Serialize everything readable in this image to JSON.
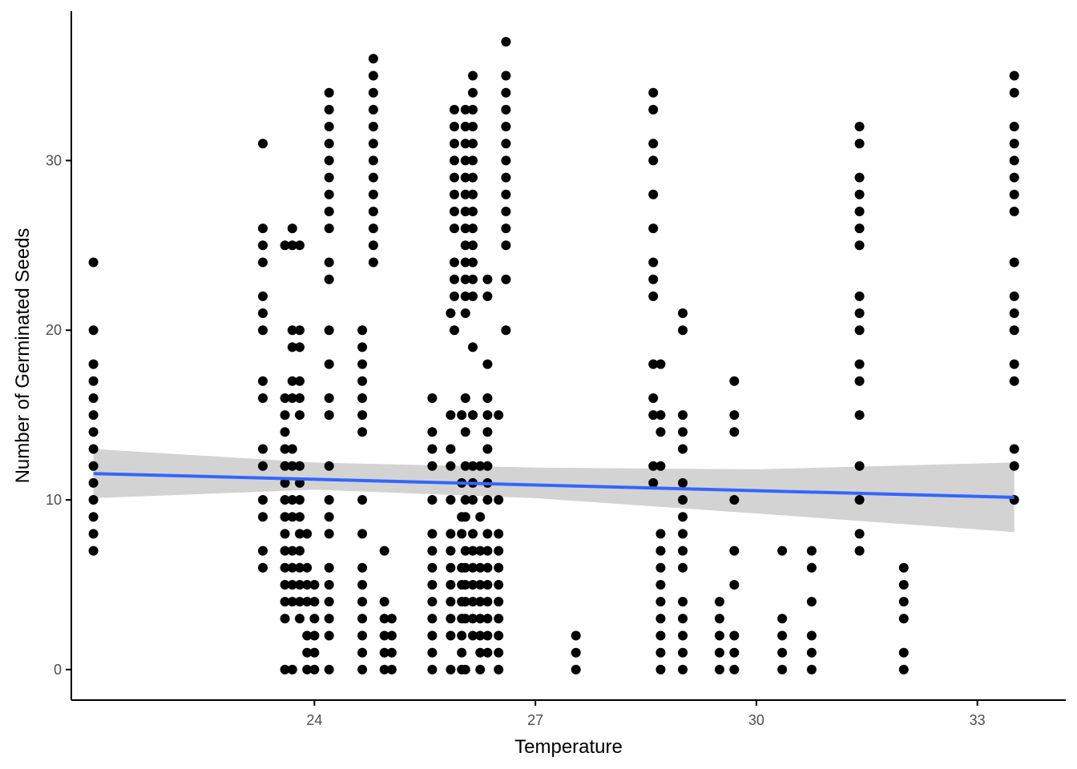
{
  "chart_data": {
    "type": "scatter",
    "xlabel": "Temperature",
    "ylabel": "Number of Germinated Seeds",
    "xlim": [
      20.7,
      34.2
    ],
    "ylim": [
      -1.8,
      38.8
    ],
    "x_ticks": [
      24,
      27,
      30,
      33
    ],
    "y_ticks": [
      0,
      10,
      20,
      30
    ],
    "grid": false,
    "points": [
      [
        21.0,
        7
      ],
      [
        21.0,
        8
      ],
      [
        21.0,
        9
      ],
      [
        21.0,
        10
      ],
      [
        21.0,
        11
      ],
      [
        21.0,
        12
      ],
      [
        21.0,
        13
      ],
      [
        21.0,
        14
      ],
      [
        21.0,
        15
      ],
      [
        21.0,
        16
      ],
      [
        21.0,
        17
      ],
      [
        21.0,
        18
      ],
      [
        21.0,
        20
      ],
      [
        21.0,
        24
      ],
      [
        23.3,
        6
      ],
      [
        23.3,
        7
      ],
      [
        23.3,
        9
      ],
      [
        23.3,
        10
      ],
      [
        23.3,
        12
      ],
      [
        23.3,
        13
      ],
      [
        23.3,
        16
      ],
      [
        23.3,
        17
      ],
      [
        23.3,
        20
      ],
      [
        23.3,
        21
      ],
      [
        23.3,
        22
      ],
      [
        23.3,
        24
      ],
      [
        23.3,
        25
      ],
      [
        23.3,
        26
      ],
      [
        23.3,
        31
      ],
      [
        23.6,
        0
      ],
      [
        23.6,
        3
      ],
      [
        23.6,
        4
      ],
      [
        23.6,
        5
      ],
      [
        23.6,
        6
      ],
      [
        23.6,
        7
      ],
      [
        23.6,
        8
      ],
      [
        23.6,
        9
      ],
      [
        23.6,
        10
      ],
      [
        23.6,
        11
      ],
      [
        23.6,
        12
      ],
      [
        23.6,
        13
      ],
      [
        23.6,
        14
      ],
      [
        23.6,
        15
      ],
      [
        23.6,
        16
      ],
      [
        23.6,
        25
      ],
      [
        23.7,
        0
      ],
      [
        23.7,
        4
      ],
      [
        23.7,
        5
      ],
      [
        23.7,
        6
      ],
      [
        23.7,
        7
      ],
      [
        23.7,
        9
      ],
      [
        23.7,
        10
      ],
      [
        23.7,
        12
      ],
      [
        23.7,
        13
      ],
      [
        23.7,
        16
      ],
      [
        23.7,
        17
      ],
      [
        23.7,
        19
      ],
      [
        23.7,
        20
      ],
      [
        23.7,
        25
      ],
      [
        23.7,
        26
      ],
      [
        23.8,
        3
      ],
      [
        23.8,
        4
      ],
      [
        23.8,
        5
      ],
      [
        23.8,
        6
      ],
      [
        23.8,
        7
      ],
      [
        23.8,
        8
      ],
      [
        23.8,
        9
      ],
      [
        23.8,
        10
      ],
      [
        23.8,
        11
      ],
      [
        23.8,
        12
      ],
      [
        23.8,
        15
      ],
      [
        23.8,
        16
      ],
      [
        23.8,
        17
      ],
      [
        23.8,
        19
      ],
      [
        23.8,
        20
      ],
      [
        23.8,
        25
      ],
      [
        23.9,
        0
      ],
      [
        23.9,
        1
      ],
      [
        23.9,
        2
      ],
      [
        23.9,
        4
      ],
      [
        23.9,
        5
      ],
      [
        23.9,
        6
      ],
      [
        23.9,
        8
      ],
      [
        24.0,
        0
      ],
      [
        24.0,
        1
      ],
      [
        24.0,
        2
      ],
      [
        24.0,
        3
      ],
      [
        24.0,
        4
      ],
      [
        24.0,
        5
      ],
      [
        24.2,
        0
      ],
      [
        24.2,
        2
      ],
      [
        24.2,
        3
      ],
      [
        24.2,
        4
      ],
      [
        24.2,
        5
      ],
      [
        24.2,
        6
      ],
      [
        24.2,
        8
      ],
      [
        24.2,
        9
      ],
      [
        24.2,
        10
      ],
      [
        24.2,
        12
      ],
      [
        24.2,
        15
      ],
      [
        24.2,
        16
      ],
      [
        24.2,
        18
      ],
      [
        24.2,
        20
      ],
      [
        24.2,
        23
      ],
      [
        24.2,
        24
      ],
      [
        24.2,
        26
      ],
      [
        24.2,
        27
      ],
      [
        24.2,
        28
      ],
      [
        24.2,
        29
      ],
      [
        24.2,
        30
      ],
      [
        24.2,
        31
      ],
      [
        24.2,
        32
      ],
      [
        24.2,
        33
      ],
      [
        24.2,
        34
      ],
      [
        24.65,
        0
      ],
      [
        24.65,
        1
      ],
      [
        24.65,
        2
      ],
      [
        24.65,
        3
      ],
      [
        24.65,
        4
      ],
      [
        24.65,
        5
      ],
      [
        24.65,
        6
      ],
      [
        24.65,
        8
      ],
      [
        24.65,
        10
      ],
      [
        24.65,
        14
      ],
      [
        24.65,
        15
      ],
      [
        24.65,
        16
      ],
      [
        24.65,
        17
      ],
      [
        24.65,
        18
      ],
      [
        24.65,
        19
      ],
      [
        24.65,
        20
      ],
      [
        24.8,
        24
      ],
      [
        24.8,
        25
      ],
      [
        24.8,
        26
      ],
      [
        24.8,
        27
      ],
      [
        24.8,
        28
      ],
      [
        24.8,
        29
      ],
      [
        24.8,
        30
      ],
      [
        24.8,
        31
      ],
      [
        24.8,
        32
      ],
      [
        24.8,
        33
      ],
      [
        24.8,
        34
      ],
      [
        24.8,
        35
      ],
      [
        24.8,
        36
      ],
      [
        24.95,
        0
      ],
      [
        24.95,
        1
      ],
      [
        24.95,
        2
      ],
      [
        24.95,
        3
      ],
      [
        24.95,
        4
      ],
      [
        24.95,
        7
      ],
      [
        25.05,
        0
      ],
      [
        25.05,
        1
      ],
      [
        25.05,
        2
      ],
      [
        25.05,
        3
      ],
      [
        25.6,
        0
      ],
      [
        25.6,
        1
      ],
      [
        25.6,
        2
      ],
      [
        25.6,
        3
      ],
      [
        25.6,
        4
      ],
      [
        25.6,
        5
      ],
      [
        25.6,
        6
      ],
      [
        25.6,
        7
      ],
      [
        25.6,
        8
      ],
      [
        25.6,
        10
      ],
      [
        25.6,
        12
      ],
      [
        25.6,
        13
      ],
      [
        25.6,
        14
      ],
      [
        25.6,
        16
      ],
      [
        25.85,
        0
      ],
      [
        25.85,
        2
      ],
      [
        25.85,
        3
      ],
      [
        25.85,
        4
      ],
      [
        25.85,
        5
      ],
      [
        25.85,
        6
      ],
      [
        25.85,
        7
      ],
      [
        25.85,
        8
      ],
      [
        25.85,
        10
      ],
      [
        25.85,
        12
      ],
      [
        25.85,
        13
      ],
      [
        25.85,
        15
      ],
      [
        25.85,
        21
      ],
      [
        25.9,
        20
      ],
      [
        25.9,
        22
      ],
      [
        25.9,
        23
      ],
      [
        25.9,
        24
      ],
      [
        25.9,
        26
      ],
      [
        25.9,
        27
      ],
      [
        25.9,
        28
      ],
      [
        25.9,
        29
      ],
      [
        25.9,
        30
      ],
      [
        25.9,
        31
      ],
      [
        25.9,
        32
      ],
      [
        25.9,
        33
      ],
      [
        26.0,
        0
      ],
      [
        26.0,
        1
      ],
      [
        26.0,
        2
      ],
      [
        26.0,
        3
      ],
      [
        26.0,
        4
      ],
      [
        26.0,
        5
      ],
      [
        26.0,
        6
      ],
      [
        26.0,
        8
      ],
      [
        26.0,
        9
      ],
      [
        26.0,
        11
      ],
      [
        26.0,
        15
      ],
      [
        26.05,
        0
      ],
      [
        26.05,
        3
      ],
      [
        26.05,
        4
      ],
      [
        26.05,
        5
      ],
      [
        26.05,
        6
      ],
      [
        26.05,
        7
      ],
      [
        26.05,
        9
      ],
      [
        26.05,
        10
      ],
      [
        26.05,
        12
      ],
      [
        26.05,
        14
      ],
      [
        26.05,
        16
      ],
      [
        26.05,
        21
      ],
      [
        26.05,
        22
      ],
      [
        26.05,
        23
      ],
      [
        26.05,
        24
      ],
      [
        26.05,
        25
      ],
      [
        26.05,
        26
      ],
      [
        26.05,
        27
      ],
      [
        26.05,
        28
      ],
      [
        26.05,
        29
      ],
      [
        26.05,
        30
      ],
      [
        26.05,
        31
      ],
      [
        26.05,
        32
      ],
      [
        26.05,
        33
      ],
      [
        26.15,
        2
      ],
      [
        26.15,
        3
      ],
      [
        26.15,
        4
      ],
      [
        26.15,
        5
      ],
      [
        26.15,
        6
      ],
      [
        26.15,
        7
      ],
      [
        26.15,
        8
      ],
      [
        26.15,
        10
      ],
      [
        26.15,
        11
      ],
      [
        26.15,
        12
      ],
      [
        26.15,
        15
      ],
      [
        26.15,
        19
      ],
      [
        26.15,
        22
      ],
      [
        26.15,
        23
      ],
      [
        26.15,
        24
      ],
      [
        26.15,
        25
      ],
      [
        26.15,
        26
      ],
      [
        26.15,
        27
      ],
      [
        26.15,
        28
      ],
      [
        26.15,
        29
      ],
      [
        26.15,
        30
      ],
      [
        26.15,
        31
      ],
      [
        26.15,
        32
      ],
      [
        26.15,
        33
      ],
      [
        26.15,
        34
      ],
      [
        26.15,
        35
      ],
      [
        26.25,
        0
      ],
      [
        26.25,
        1
      ],
      [
        26.25,
        2
      ],
      [
        26.25,
        3
      ],
      [
        26.25,
        4
      ],
      [
        26.25,
        5
      ],
      [
        26.25,
        6
      ],
      [
        26.25,
        7
      ],
      [
        26.25,
        9
      ],
      [
        26.25,
        12
      ],
      [
        26.35,
        1
      ],
      [
        26.35,
        2
      ],
      [
        26.35,
        3
      ],
      [
        26.35,
        4
      ],
      [
        26.35,
        5
      ],
      [
        26.35,
        6
      ],
      [
        26.35,
        7
      ],
      [
        26.35,
        8
      ],
      [
        26.35,
        10
      ],
      [
        26.35,
        11
      ],
      [
        26.35,
        12
      ],
      [
        26.35,
        13
      ],
      [
        26.35,
        14
      ],
      [
        26.35,
        15
      ],
      [
        26.35,
        16
      ],
      [
        26.35,
        18
      ],
      [
        26.35,
        22
      ],
      [
        26.35,
        23
      ],
      [
        26.5,
        0
      ],
      [
        26.5,
        1
      ],
      [
        26.5,
        2
      ],
      [
        26.5,
        3
      ],
      [
        26.5,
        4
      ],
      [
        26.5,
        5
      ],
      [
        26.5,
        6
      ],
      [
        26.5,
        7
      ],
      [
        26.5,
        8
      ],
      [
        26.5,
        10
      ],
      [
        26.5,
        15
      ],
      [
        26.6,
        20
      ],
      [
        26.6,
        23
      ],
      [
        26.6,
        25
      ],
      [
        26.6,
        26
      ],
      [
        26.6,
        27
      ],
      [
        26.6,
        28
      ],
      [
        26.6,
        29
      ],
      [
        26.6,
        30
      ],
      [
        26.6,
        31
      ],
      [
        26.6,
        32
      ],
      [
        26.6,
        33
      ],
      [
        26.6,
        34
      ],
      [
        26.6,
        35
      ],
      [
        26.6,
        37
      ],
      [
        27.55,
        0
      ],
      [
        27.55,
        1
      ],
      [
        27.55,
        2
      ],
      [
        28.6,
        11
      ],
      [
        28.6,
        12
      ],
      [
        28.6,
        15
      ],
      [
        28.6,
        16
      ],
      [
        28.6,
        18
      ],
      [
        28.6,
        22
      ],
      [
        28.6,
        23
      ],
      [
        28.6,
        24
      ],
      [
        28.6,
        26
      ],
      [
        28.6,
        28
      ],
      [
        28.6,
        30
      ],
      [
        28.6,
        31
      ],
      [
        28.6,
        33
      ],
      [
        28.6,
        34
      ],
      [
        28.7,
        0
      ],
      [
        28.7,
        1
      ],
      [
        28.7,
        2
      ],
      [
        28.7,
        3
      ],
      [
        28.7,
        4
      ],
      [
        28.7,
        5
      ],
      [
        28.7,
        6
      ],
      [
        28.7,
        7
      ],
      [
        28.7,
        8
      ],
      [
        28.7,
        12
      ],
      [
        28.7,
        14
      ],
      [
        28.7,
        15
      ],
      [
        28.7,
        18
      ],
      [
        29.0,
        0
      ],
      [
        29.0,
        1
      ],
      [
        29.0,
        2
      ],
      [
        29.0,
        3
      ],
      [
        29.0,
        4
      ],
      [
        29.0,
        6
      ],
      [
        29.0,
        7
      ],
      [
        29.0,
        8
      ],
      [
        29.0,
        9
      ],
      [
        29.0,
        10
      ],
      [
        29.0,
        11
      ],
      [
        29.0,
        13
      ],
      [
        29.0,
        14
      ],
      [
        29.0,
        15
      ],
      [
        29.0,
        20
      ],
      [
        29.0,
        21
      ],
      [
        29.5,
        0
      ],
      [
        29.5,
        1
      ],
      [
        29.5,
        2
      ],
      [
        29.5,
        3
      ],
      [
        29.5,
        4
      ],
      [
        29.7,
        0
      ],
      [
        29.7,
        1
      ],
      [
        29.7,
        2
      ],
      [
        29.7,
        5
      ],
      [
        29.7,
        7
      ],
      [
        29.7,
        10
      ],
      [
        29.7,
        14
      ],
      [
        29.7,
        15
      ],
      [
        29.7,
        17
      ],
      [
        30.35,
        0
      ],
      [
        30.35,
        1
      ],
      [
        30.35,
        2
      ],
      [
        30.35,
        3
      ],
      [
        30.35,
        7
      ],
      [
        30.75,
        0
      ],
      [
        30.75,
        1
      ],
      [
        30.75,
        2
      ],
      [
        30.75,
        4
      ],
      [
        30.75,
        6
      ],
      [
        30.75,
        7
      ],
      [
        31.4,
        7
      ],
      [
        31.4,
        8
      ],
      [
        31.4,
        10
      ],
      [
        31.4,
        12
      ],
      [
        31.4,
        15
      ],
      [
        31.4,
        17
      ],
      [
        31.4,
        18
      ],
      [
        31.4,
        20
      ],
      [
        31.4,
        21
      ],
      [
        31.4,
        22
      ],
      [
        31.4,
        25
      ],
      [
        31.4,
        26
      ],
      [
        31.4,
        27
      ],
      [
        31.4,
        28
      ],
      [
        31.4,
        29
      ],
      [
        31.4,
        31
      ],
      [
        31.4,
        32
      ],
      [
        32.0,
        0
      ],
      [
        32.0,
        1
      ],
      [
        32.0,
        3
      ],
      [
        32.0,
        4
      ],
      [
        32.0,
        5
      ],
      [
        32.0,
        6
      ],
      [
        33.5,
        10
      ],
      [
        33.5,
        12
      ],
      [
        33.5,
        13
      ],
      [
        33.5,
        17
      ],
      [
        33.5,
        18
      ],
      [
        33.5,
        20
      ],
      [
        33.5,
        21
      ],
      [
        33.5,
        22
      ],
      [
        33.5,
        24
      ],
      [
        33.5,
        27
      ],
      [
        33.5,
        28
      ],
      [
        33.5,
        29
      ],
      [
        33.5,
        30
      ],
      [
        33.5,
        31
      ],
      [
        33.5,
        32
      ],
      [
        33.5,
        34
      ],
      [
        33.5,
        35
      ]
    ],
    "trend_line": {
      "method": "linear",
      "x": [
        21.0,
        33.5
      ],
      "y": [
        11.55,
        10.15
      ],
      "color": "#3366FF"
    },
    "confidence_band": {
      "x": [
        21.0,
        24.0,
        27.0,
        30.0,
        33.5
      ],
      "lower": [
        10.1,
        10.6,
        10.1,
        9.2,
        8.1
      ],
      "upper": [
        13.0,
        12.2,
        11.9,
        11.8,
        12.2
      ],
      "color": "#d3d3d3"
    },
    "point_color": "#000000"
  }
}
